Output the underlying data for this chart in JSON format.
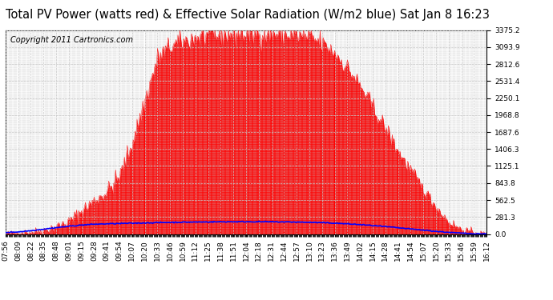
{
  "title": "Total PV Power (watts red) & Effective Solar Radiation (W/m2 blue) Sat Jan 8 16:23",
  "copyright_text": "Copyright 2011 Cartronics.com",
  "y_max": 3375.2,
  "y_min": 0.0,
  "y_ticks": [
    0.0,
    281.3,
    562.5,
    843.8,
    1125.1,
    1406.3,
    1687.6,
    1968.8,
    2250.1,
    2531.4,
    2812.6,
    3093.9,
    3375.2
  ],
  "x_labels": [
    "07:56",
    "08:09",
    "08:22",
    "08:35",
    "08:48",
    "09:01",
    "09:15",
    "09:28",
    "09:41",
    "09:54",
    "10:07",
    "10:20",
    "10:33",
    "10:46",
    "10:59",
    "11:12",
    "11:25",
    "11:38",
    "11:51",
    "12:04",
    "12:18",
    "12:31",
    "12:44",
    "12:57",
    "13:10",
    "13:23",
    "13:36",
    "13:49",
    "14:02",
    "14:15",
    "14:28",
    "14:41",
    "14:54",
    "15:07",
    "15:20",
    "15:33",
    "15:46",
    "15:59",
    "16:12"
  ],
  "pv_color": "#ff0000",
  "solar_color": "#0000ff",
  "background_color": "#ffffff",
  "grid_color": "#c8c8c8",
  "title_fontsize": 10.5,
  "copyright_fontsize": 7,
  "tick_fontsize": 6.5,
  "pv_envelope": [
    15,
    20,
    30,
    60,
    120,
    200,
    380,
    550,
    700,
    950,
    1500,
    2200,
    2900,
    3100,
    3180,
    3250,
    3280,
    3300,
    3310,
    3320,
    3320,
    3310,
    3300,
    3280,
    3250,
    3150,
    3000,
    2750,
    2450,
    2100,
    1750,
    1380,
    1050,
    750,
    450,
    200,
    80,
    25,
    5
  ],
  "solar_envelope": [
    25,
    35,
    55,
    80,
    105,
    128,
    148,
    162,
    168,
    173,
    178,
    183,
    188,
    192,
    195,
    198,
    200,
    202,
    203,
    204,
    203,
    202,
    200,
    197,
    193,
    187,
    179,
    168,
    155,
    140,
    122,
    103,
    83,
    64,
    44,
    27,
    14,
    6,
    2
  ],
  "n_points_per_interval": 13,
  "noise_scale_pv": 60,
  "noise_scale_solar": 4
}
